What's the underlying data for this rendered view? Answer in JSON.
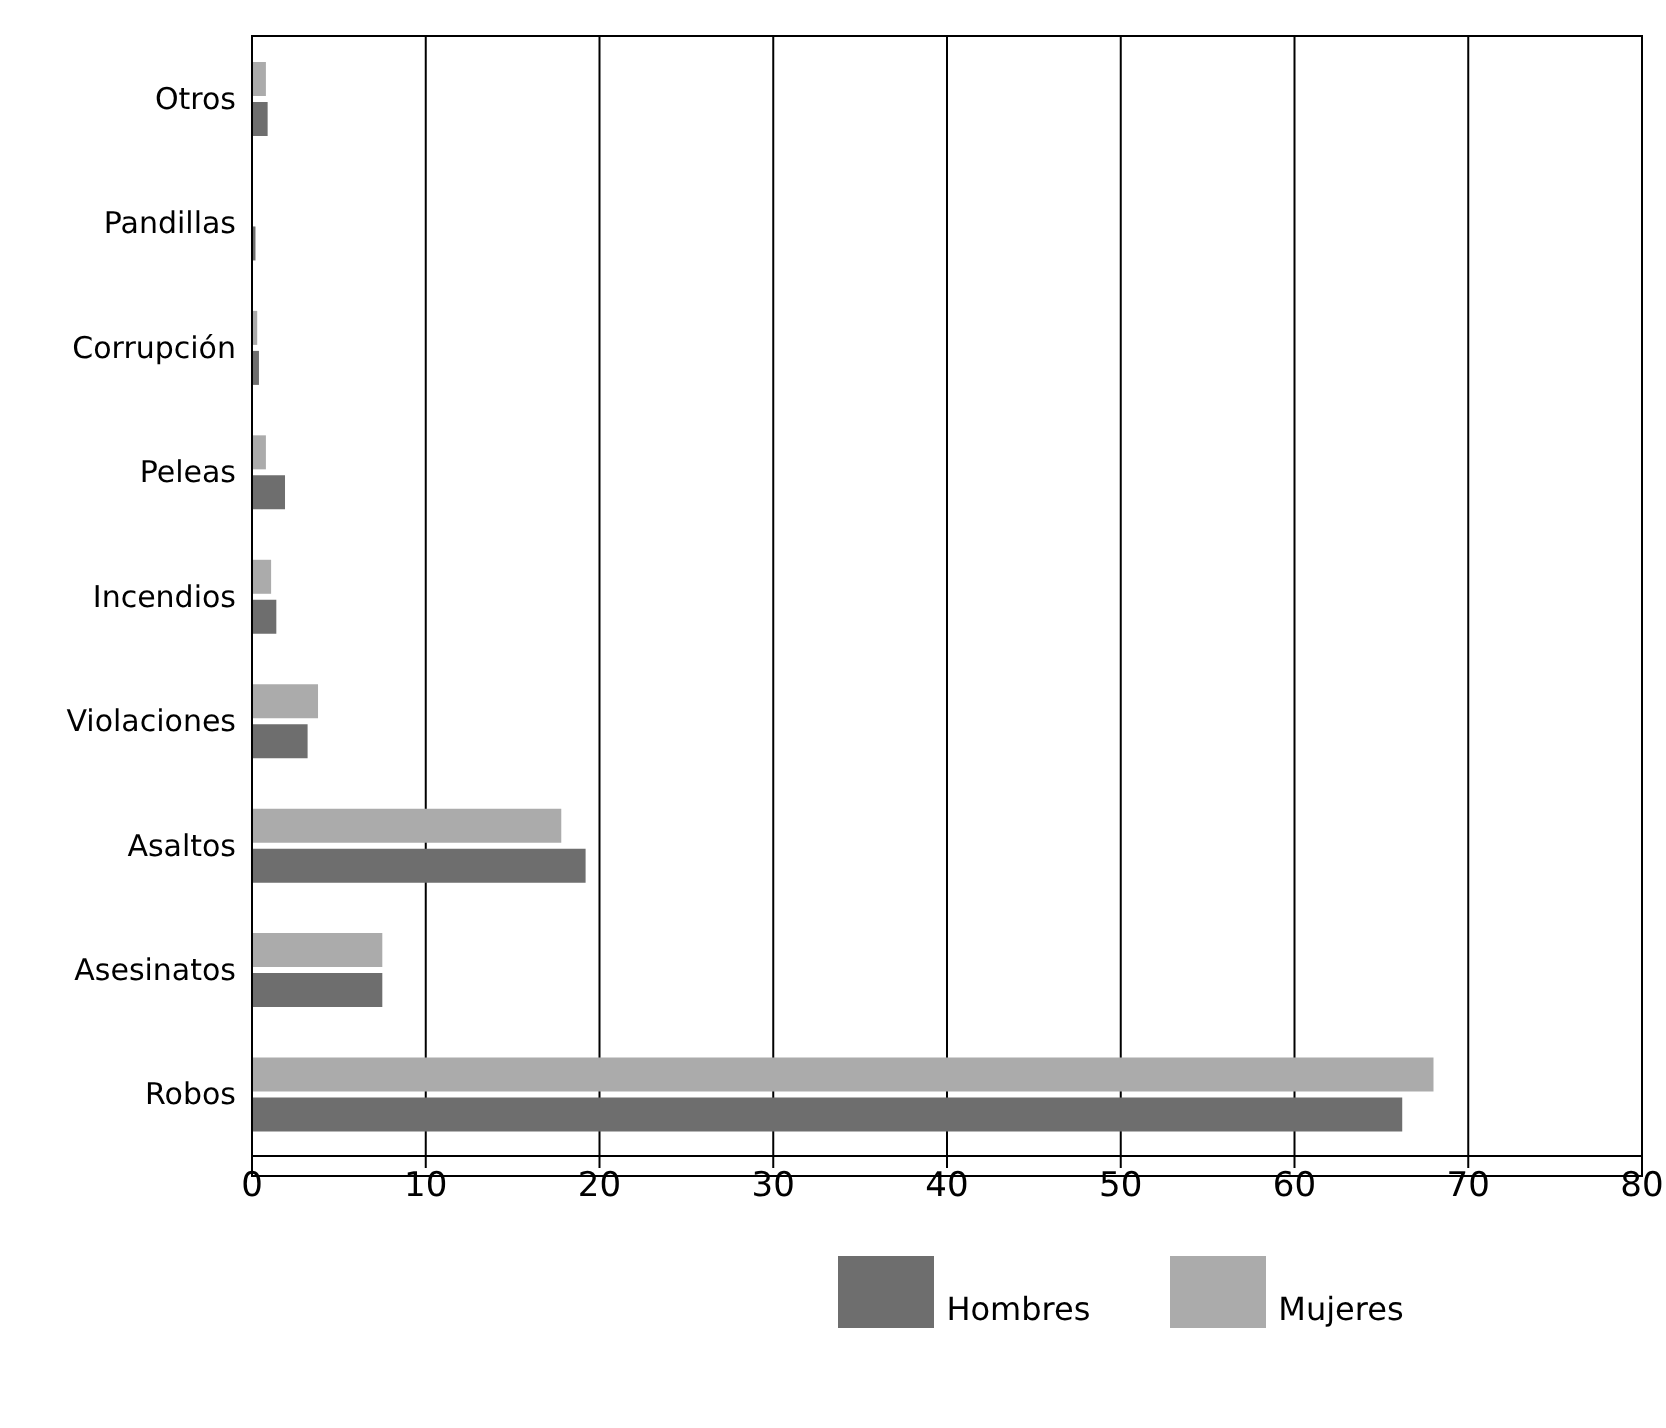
{
  "chart_data": {
    "type": "bar",
    "orientation": "horizontal",
    "categories": [
      "Otros",
      "Pandillas",
      "Corrupción",
      "Peleas",
      "Incendios",
      "Violaciones",
      "Asaltos",
      "Asesinatos",
      "Robos"
    ],
    "series": [
      {
        "name": "Hombres",
        "color": "#6e6e6e",
        "values": [
          0.9,
          0.2,
          0.4,
          1.9,
          1.4,
          3.2,
          19.2,
          7.5,
          66.2
        ]
      },
      {
        "name": "Mujeres",
        "color": "#ababab",
        "values": [
          0.8,
          null,
          0.3,
          0.8,
          1.1,
          3.8,
          17.8,
          7.5,
          68.0
        ]
      }
    ],
    "xlim": [
      0,
      80
    ],
    "xticks": [
      0,
      10,
      20,
      30,
      40,
      50,
      60,
      70,
      80
    ],
    "grid": "x",
    "legend": "bottom"
  }
}
